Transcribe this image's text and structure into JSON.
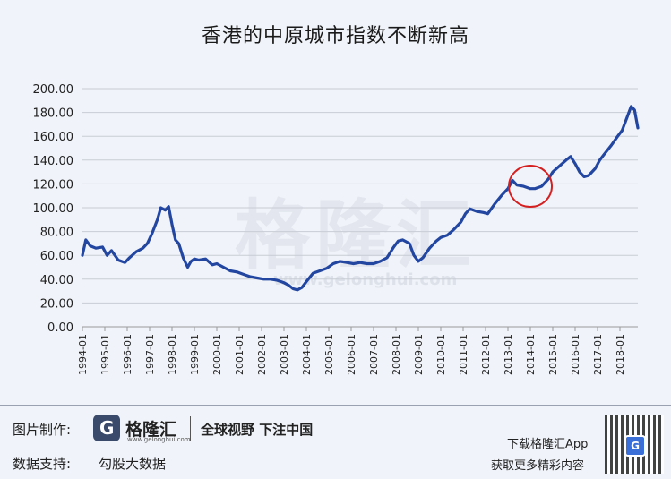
{
  "chart_data": {
    "type": "line",
    "title": "香港的中原城市指数不断新高",
    "xlabel": "",
    "ylabel": "",
    "ylim": [
      0,
      200
    ],
    "yticks": [
      "0.00",
      "20.00",
      "40.00",
      "60.00",
      "80.00",
      "100.00",
      "120.00",
      "140.00",
      "160.00",
      "180.00",
      "200.00"
    ],
    "xticks": [
      "1994-01",
      "1995-01",
      "1996-01",
      "1997-01",
      "1998-01",
      "1999-01",
      "2000-01",
      "2001-01",
      "2002-01",
      "2003-01",
      "2004-01",
      "2005-01",
      "2006-01",
      "2007-01",
      "2008-01",
      "2009-01",
      "2010-01",
      "2011-01",
      "2012-01",
      "2013-01",
      "2014-01",
      "2015-01",
      "2016-01",
      "2017-01",
      "2018-01"
    ],
    "grid": "horizontal",
    "line_color": "#2347a0",
    "annotation": {
      "shape": "circle",
      "color": "#d42020",
      "at_x": 2014.0,
      "at_y": 118
    },
    "series": [
      {
        "x": [
          1994.0,
          1994.15,
          1994.35,
          1994.6,
          1994.9,
          1995.1,
          1995.3,
          1995.6,
          1995.9,
          1996.1,
          1996.4,
          1996.7,
          1996.9,
          1997.1,
          1997.35,
          1997.5,
          1997.7,
          1997.85,
          1998.0,
          1998.15,
          1998.3,
          1998.5,
          1998.7,
          1998.85,
          1999.0,
          1999.2,
          1999.5,
          1999.8,
          2000.0,
          2000.3,
          2000.6,
          2000.9,
          2001.2,
          2001.5,
          2001.8,
          2002.1,
          2002.4,
          2002.7,
          2003.0,
          2003.2,
          2003.4,
          2003.6,
          2003.8,
          2004.0,
          2004.3,
          2004.6,
          2004.9,
          2005.2,
          2005.5,
          2005.8,
          2006.1,
          2006.4,
          2006.7,
          2007.0,
          2007.3,
          2007.6,
          2007.9,
          2008.1,
          2008.3,
          2008.6,
          2008.8,
          2009.0,
          2009.2,
          2009.5,
          2009.8,
          2010.0,
          2010.3,
          2010.6,
          2010.9,
          2011.1,
          2011.3,
          2011.6,
          2011.9,
          2012.1,
          2012.4,
          2012.7,
          2013.0,
          2013.2,
          2013.4,
          2013.7,
          2014.0,
          2014.2,
          2014.5,
          2014.8,
          2015.0,
          2015.3,
          2015.6,
          2015.8,
          2016.0,
          2016.2,
          2016.4,
          2016.6,
          2016.9,
          2017.1,
          2017.3,
          2017.6,
          2017.9,
          2018.1,
          2018.3,
          2018.5,
          2018.65,
          2018.8
        ],
        "y": [
          60,
          73,
          68,
          66,
          67,
          60,
          64,
          56,
          54,
          58,
          63,
          66,
          70,
          78,
          90,
          100,
          98,
          101,
          86,
          73,
          70,
          58,
          50,
          55,
          57,
          56,
          57,
          52,
          53,
          50,
          47,
          46,
          44,
          42,
          41,
          40,
          40,
          39,
          37,
          35,
          32,
          31,
          33,
          38,
          45,
          47,
          49,
          53,
          55,
          54,
          53,
          54,
          53,
          53,
          55,
          58,
          67,
          72,
          73,
          70,
          60,
          55,
          58,
          66,
          72,
          75,
          77,
          82,
          88,
          95,
          99,
          97,
          96,
          95,
          103,
          110,
          116,
          123,
          119,
          118,
          116,
          116,
          118,
          124,
          130,
          135,
          140,
          143,
          137,
          130,
          126,
          127,
          133,
          140,
          145,
          152,
          160,
          165,
          175,
          185,
          182,
          167
        ]
      }
    ]
  },
  "watermark": {
    "main": "格隆汇",
    "url": "www.gelonghui.com"
  },
  "footer": {
    "producer_label": "图片制作:",
    "brand_name": "格隆汇",
    "brand_url": "www.gelonghui.com",
    "brand_icon_letter": "G",
    "slogan": "全球视野 下注中国",
    "data_label": "数据支持:",
    "data_source": "勾股大数据",
    "download_line1": "下载格隆汇App",
    "download_line2": "获取更多精彩内容"
  }
}
